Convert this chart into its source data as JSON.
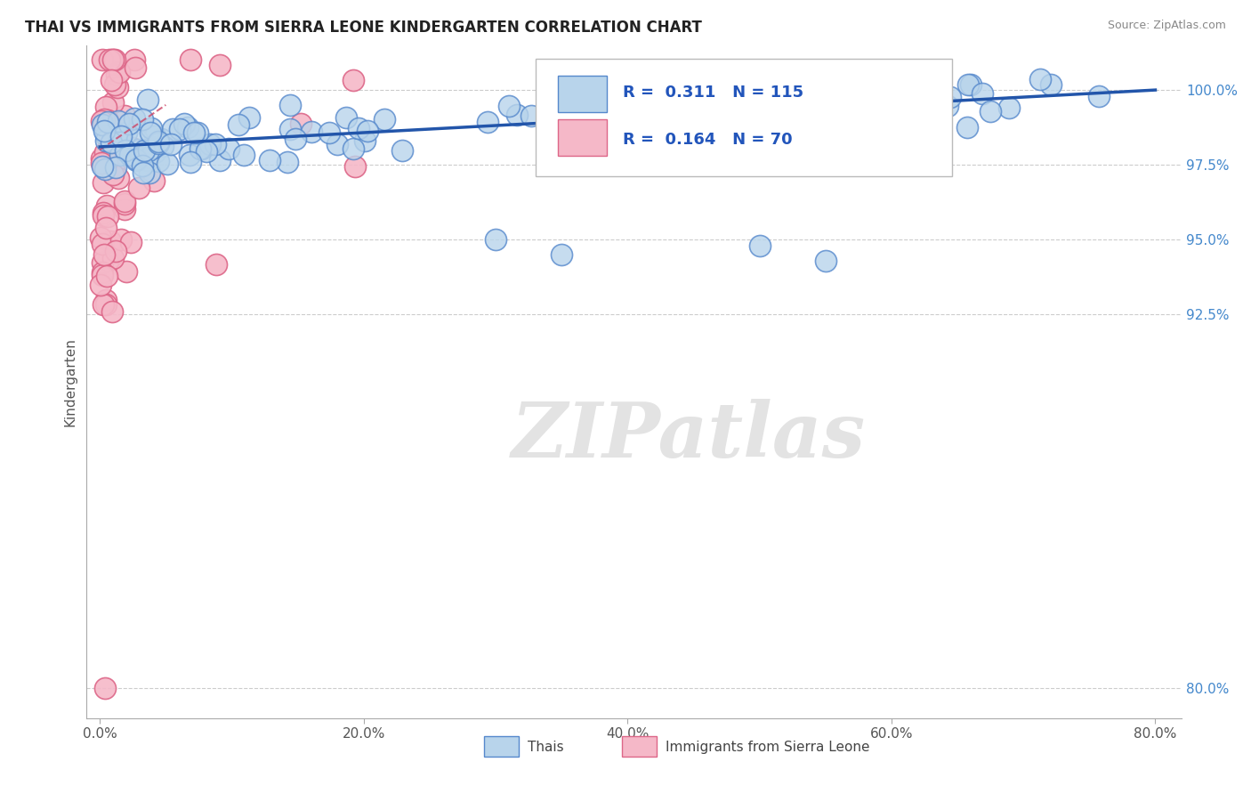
{
  "title": "THAI VS IMMIGRANTS FROM SIERRA LEONE KINDERGARTEN CORRELATION CHART",
  "source": "Source: ZipAtlas.com",
  "ylabel": "Kindergarten",
  "xlim": [
    -1.0,
    82.0
  ],
  "ylim": [
    79.0,
    101.5
  ],
  "yticks": [
    80.0,
    92.5,
    95.0,
    97.5,
    100.0
  ],
  "xticks": [
    0.0,
    20.0,
    40.0,
    60.0,
    80.0
  ],
  "thai_color": "#b8d4eb",
  "thai_edge_color": "#5588cc",
  "sierra_color": "#f5b8c8",
  "sierra_edge_color": "#dd6688",
  "trendline_thai_color": "#2255aa",
  "trendline_sierra_color": "#cc4466",
  "R_thai": 0.311,
  "N_thai": 115,
  "R_sierra": 0.164,
  "N_sierra": 70,
  "watermark": "ZIPatlas",
  "legend_thais": "Thais",
  "legend_sierra": "Immigrants from Sierra Leone",
  "trendline_thai_x0": 0.0,
  "trendline_thai_y0": 98.1,
  "trendline_thai_x1": 80.0,
  "trendline_thai_y1": 100.0,
  "trendline_sierra_x0": 0.0,
  "trendline_sierra_y0": 99.2,
  "trendline_sierra_x1": 5.0,
  "trendline_sierra_y1": 98.5
}
